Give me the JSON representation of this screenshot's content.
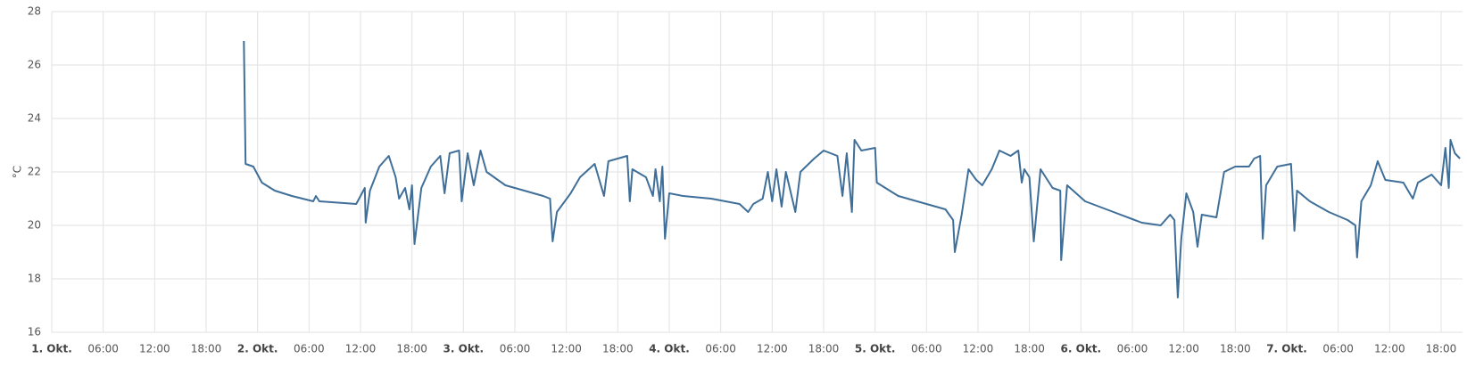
{
  "chart_data": {
    "type": "line",
    "y_label": "°C",
    "color": "#3f6f99",
    "grid": true,
    "xlim": [
      0,
      164.5
    ],
    "ylim": [
      16,
      28
    ],
    "yticks": [
      16,
      18,
      20,
      22,
      24,
      26,
      28
    ],
    "xticks": [
      {
        "value": 0,
        "label": "1. Okt."
      },
      {
        "value": 6,
        "label": "06:00"
      },
      {
        "value": 12,
        "label": "12:00"
      },
      {
        "value": 18,
        "label": "18:00"
      },
      {
        "value": 24,
        "label": "2. Okt."
      },
      {
        "value": 30,
        "label": "06:00"
      },
      {
        "value": 36,
        "label": "12:00"
      },
      {
        "value": 42,
        "label": "18:00"
      },
      {
        "value": 48,
        "label": "3. Okt."
      },
      {
        "value": 54,
        "label": "06:00"
      },
      {
        "value": 60,
        "label": "12:00"
      },
      {
        "value": 66,
        "label": "18:00"
      },
      {
        "value": 72,
        "label": "4. Okt."
      },
      {
        "value": 78,
        "label": "06:00"
      },
      {
        "value": 84,
        "label": "12:00"
      },
      {
        "value": 90,
        "label": "18:00"
      },
      {
        "value": 96,
        "label": "5. Okt."
      },
      {
        "value": 102,
        "label": "06:00"
      },
      {
        "value": 108,
        "label": "12:00"
      },
      {
        "value": 114,
        "label": "18:00"
      },
      {
        "value": 120,
        "label": "6. Okt."
      },
      {
        "value": 126,
        "label": "06:00"
      },
      {
        "value": 132,
        "label": "12:00"
      },
      {
        "value": 138,
        "label": "18:00"
      },
      {
        "value": 144,
        "label": "7. Okt."
      },
      {
        "value": 150,
        "label": "06:00"
      },
      {
        "value": 156,
        "label": "12:00"
      },
      {
        "value": 162,
        "label": "18:00"
      }
    ],
    "x": [
      22.4,
      22.6,
      23.5,
      24.5,
      26,
      28,
      30.5,
      30.8,
      31.2,
      35.5,
      36.5,
      36.6,
      37.1,
      38.2,
      39.3,
      40.1,
      40.5,
      41.2,
      41.7,
      42,
      42.3,
      43.1,
      44.2,
      45.3,
      45.8,
      46.4,
      47.5,
      47.8,
      48.5,
      49.2,
      50,
      50.7,
      52.9,
      55.1,
      57.3,
      58.1,
      58.4,
      58.9,
      60.5,
      61.6,
      63.3,
      64.4,
      64.9,
      67.1,
      67.4,
      67.7,
      69.3,
      70.1,
      70.4,
      70.9,
      71.2,
      71.5,
      72,
      73.6,
      76.9,
      80.2,
      81.2,
      81.8,
      82.9,
      83.5,
      84,
      84.5,
      85.1,
      85.6,
      86.7,
      87.3,
      88.9,
      90,
      91.6,
      92.2,
      92.7,
      93.3,
      93.6,
      94.4,
      96,
      96.2,
      98.7,
      102,
      104.2,
      105.1,
      105.3,
      106.1,
      106.9,
      107.8,
      108.5,
      109.6,
      110.5,
      111.8,
      112.7,
      113.1,
      113.4,
      114,
      114.5,
      115.3,
      116.7,
      117.6,
      117.7,
      118.4,
      120.5,
      123.8,
      127.1,
      129.3,
      130.4,
      130.9,
      131.3,
      131.7,
      132.3,
      133.1,
      133.6,
      134.1,
      135.8,
      136.7,
      138,
      139.6,
      140.2,
      140.9,
      141.2,
      141.6,
      142.9,
      144.5,
      144.9,
      145.2,
      146.7,
      148.9,
      151.1,
      152,
      152.2,
      152.7,
      153.8,
      154.6,
      155.5,
      157.6,
      158.7,
      159.3,
      160.9,
      162,
      162.5,
      162.9,
      163.1,
      163.6,
      164.2
    ],
    "values": [
      26.9,
      22.3,
      22.2,
      21.6,
      21.3,
      21.1,
      20.9,
      21.1,
      20.9,
      20.8,
      21.4,
      20.1,
      21.3,
      22.2,
      22.6,
      21.8,
      21.0,
      21.4,
      20.6,
      21.5,
      19.3,
      21.4,
      22.2,
      22.6,
      21.2,
      22.7,
      22.8,
      20.9,
      22.7,
      21.5,
      22.8,
      22.0,
      21.5,
      21.3,
      21.1,
      21.0,
      19.4,
      20.5,
      21.2,
      21.8,
      22.3,
      21.1,
      22.4,
      22.6,
      20.9,
      22.1,
      21.8,
      21.1,
      22.1,
      20.9,
      22.2,
      19.5,
      21.2,
      21.1,
      21.0,
      20.8,
      20.5,
      20.8,
      21.0,
      22.0,
      20.9,
      22.1,
      20.7,
      22.0,
      20.5,
      22.0,
      22.5,
      22.8,
      22.6,
      21.1,
      22.7,
      20.5,
      23.2,
      22.8,
      22.9,
      21.6,
      21.1,
      20.8,
      20.6,
      20.2,
      19.0,
      20.4,
      22.1,
      21.7,
      21.5,
      22.1,
      22.8,
      22.6,
      22.8,
      21.6,
      22.1,
      21.8,
      19.4,
      22.1,
      21.4,
      21.3,
      18.7,
      21.5,
      20.9,
      20.5,
      20.1,
      20.0,
      20.4,
      20.2,
      17.3,
      19.5,
      21.2,
      20.5,
      19.2,
      20.4,
      20.3,
      22.0,
      22.2,
      22.2,
      22.5,
      22.6,
      19.5,
      21.5,
      22.2,
      22.3,
      19.8,
      21.3,
      20.9,
      20.5,
      20.2,
      20.0,
      18.8,
      20.9,
      21.5,
      22.4,
      21.7,
      21.6,
      21.0,
      21.6,
      21.9,
      21.5,
      22.9,
      21.4,
      23.2,
      22.7,
      22.5
    ]
  }
}
